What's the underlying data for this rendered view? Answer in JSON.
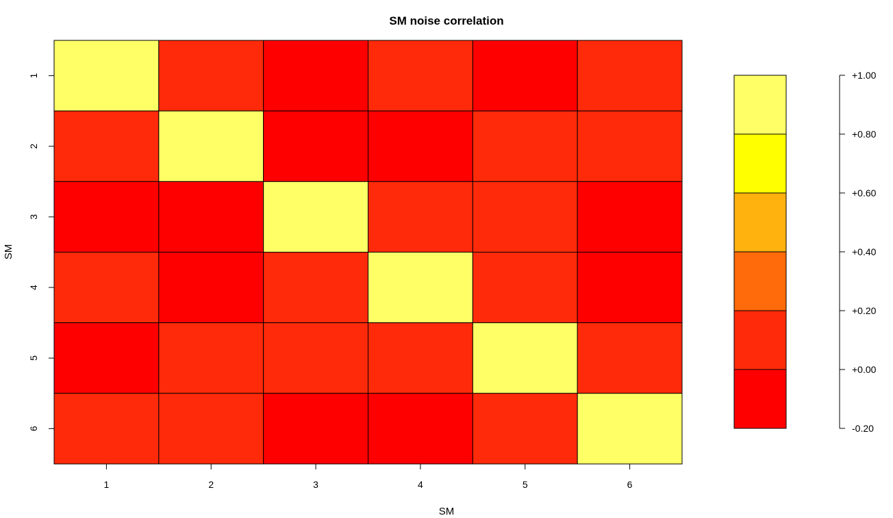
{
  "chart_data": {
    "type": "heatmap",
    "title": "SM noise correlation",
    "xlabel": "SM",
    "ylabel": "SM",
    "x_categories": [
      "1",
      "2",
      "3",
      "4",
      "5",
      "6"
    ],
    "y_categories": [
      "1",
      "2",
      "3",
      "4",
      "5",
      "6"
    ],
    "values": [
      [
        1.0,
        0.05,
        -0.1,
        0.05,
        -0.1,
        0.05
      ],
      [
        0.05,
        1.0,
        -0.1,
        -0.1,
        0.05,
        0.05
      ],
      [
        -0.1,
        -0.1,
        1.0,
        0.05,
        0.05,
        -0.1
      ],
      [
        0.05,
        -0.1,
        0.05,
        1.0,
        0.05,
        -0.1
      ],
      [
        -0.1,
        0.05,
        0.05,
        0.05,
        1.0,
        0.05
      ],
      [
        0.05,
        0.05,
        -0.1,
        -0.1,
        0.05,
        1.0
      ]
    ],
    "colorbar": {
      "bins": [
        {
          "min": -0.2,
          "max": 0.0,
          "color": "#FF0000"
        },
        {
          "min": 0.0,
          "max": 0.2,
          "color": "#FF2A0A"
        },
        {
          "min": 0.2,
          "max": 0.4,
          "color": "#FF6A0A"
        },
        {
          "min": 0.4,
          "max": 0.6,
          "color": "#FFB20E"
        },
        {
          "min": 0.6,
          "max": 0.8,
          "color": "#FFFF00"
        },
        {
          "min": 0.8,
          "max": 1.0,
          "color": "#FFFF66"
        }
      ],
      "ticks": [
        -0.2,
        0.0,
        0.2,
        0.4,
        0.6,
        0.8,
        1.0
      ],
      "tick_labels": [
        "-0.20",
        "+0.00",
        "+0.20",
        "+0.40",
        "+0.60",
        "+0.80",
        "+1.00"
      ],
      "range": [
        -0.2,
        1.0
      ]
    }
  }
}
